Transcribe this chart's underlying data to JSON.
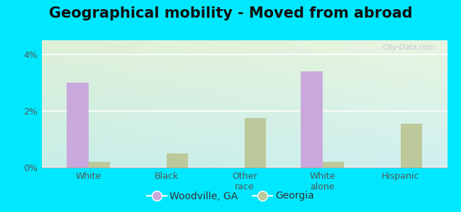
{
  "title": "Geographical mobility - Moved from abroad",
  "categories": [
    "White",
    "Black",
    "Other\nrace",
    "White\nalone",
    "Hispanic"
  ],
  "woodville_values": [
    3.0,
    0.0,
    0.0,
    3.4,
    0.0
  ],
  "georgia_values": [
    0.2,
    0.5,
    1.75,
    0.2,
    1.55
  ],
  "woodville_color": "#c9a8dc",
  "georgia_color": "#bdc99a",
  "ylim": [
    0,
    4.5
  ],
  "yticks": [
    0,
    2,
    4
  ],
  "ytick_labels": [
    "0%",
    "2%",
    "4%"
  ],
  "background_outer": "#00e8ff",
  "background_inner_topleft": "#dff0d8",
  "background_inner_bottomright": "#c8eee8",
  "bar_width": 0.28,
  "title_fontsize": 15,
  "legend_labels": [
    "Woodville, GA",
    "Georgia"
  ],
  "grid_color": "#e8e8e8",
  "tick_color": "#555555",
  "watermark": "City-Data.com"
}
